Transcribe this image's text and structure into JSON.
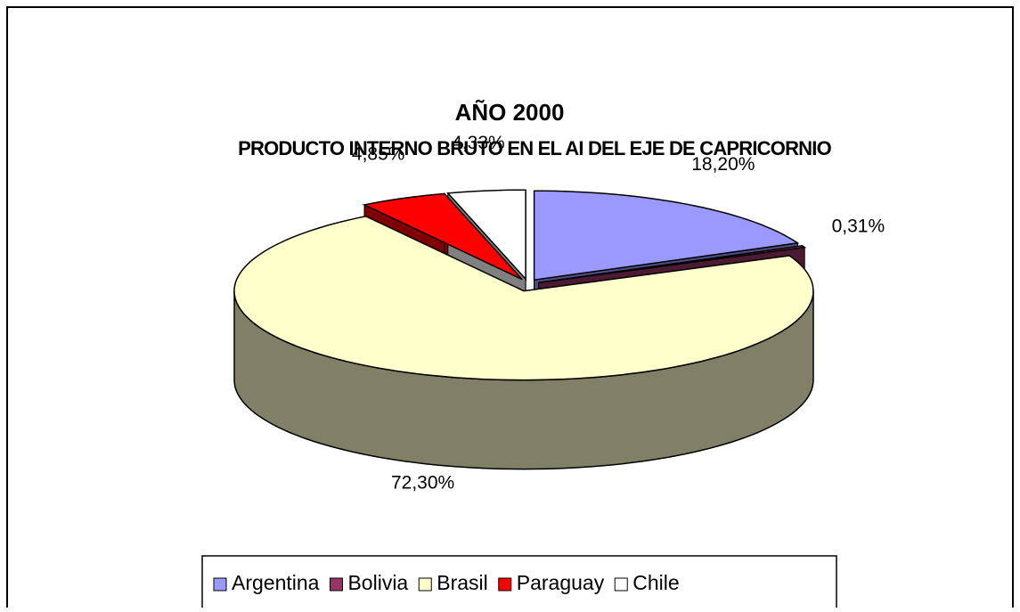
{
  "chart_data": {
    "type": "pie3d",
    "title": "AÑO 2000",
    "subtitle": "PRODUCTO INTERNO BRUTO EN EL AI DEL EJE DE CAPRICORNIO",
    "categories": [
      "Argentina",
      "Bolivia",
      "Brasil",
      "Paraguay",
      "Chile"
    ],
    "values": [
      18.2,
      0.31,
      72.3,
      4.85,
      4.33
    ],
    "value_labels": [
      "18,20%",
      "0,31%",
      "72,30%",
      "4,85%",
      "4,33%"
    ],
    "colors": [
      "#9999ff",
      "#993366",
      "#ffffcc",
      "#ff0000",
      "#ffffff"
    ],
    "legend": "bottom"
  }
}
